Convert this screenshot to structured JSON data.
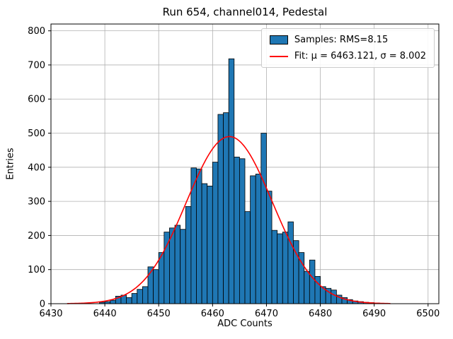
{
  "chart_data": {
    "type": "bar",
    "title": "Run 654, channel014, Pedestal",
    "xlabel": "ADC Counts",
    "ylabel": "Entries",
    "xlim": [
      6430,
      6502
    ],
    "ylim": [
      0,
      820
    ],
    "xticks": [
      6430,
      6440,
      6450,
      6460,
      6470,
      6480,
      6490,
      6500
    ],
    "yticks": [
      0,
      100,
      200,
      300,
      400,
      500,
      600,
      700,
      800
    ],
    "grid": true,
    "legend_position": "upper right",
    "histogram": {
      "bin_start": 6439,
      "bin_width": 1,
      "counts": [
        4,
        6,
        10,
        22,
        25,
        18,
        30,
        42,
        50,
        108,
        100,
        150,
        210,
        222,
        230,
        218,
        285,
        398,
        395,
        352,
        345,
        415,
        555,
        560,
        718,
        430,
        425,
        270,
        375,
        380,
        500,
        330,
        215,
        205,
        210,
        240,
        185,
        150,
        95,
        128,
        80,
        50,
        45,
        40,
        25,
        18,
        12,
        8,
        6,
        4,
        3,
        2,
        1
      ]
    },
    "fit": {
      "type": "gaussian",
      "mu": 6463.121,
      "sigma": 8.002,
      "amplitude": 490,
      "x_range": [
        6433,
        6493
      ]
    },
    "legend": [
      {
        "swatch": "patch",
        "label": "Samples: RMS=8.15"
      },
      {
        "swatch": "line",
        "label": "Fit: μ = 6463.121, σ = 8.002"
      }
    ],
    "colors": {
      "bar_fill": "#1f77b4",
      "bar_edge": "#000000",
      "fit_line": "#ff0000",
      "grid": "#b0b0b0",
      "axes": "#000000",
      "background": "#ffffff"
    }
  }
}
